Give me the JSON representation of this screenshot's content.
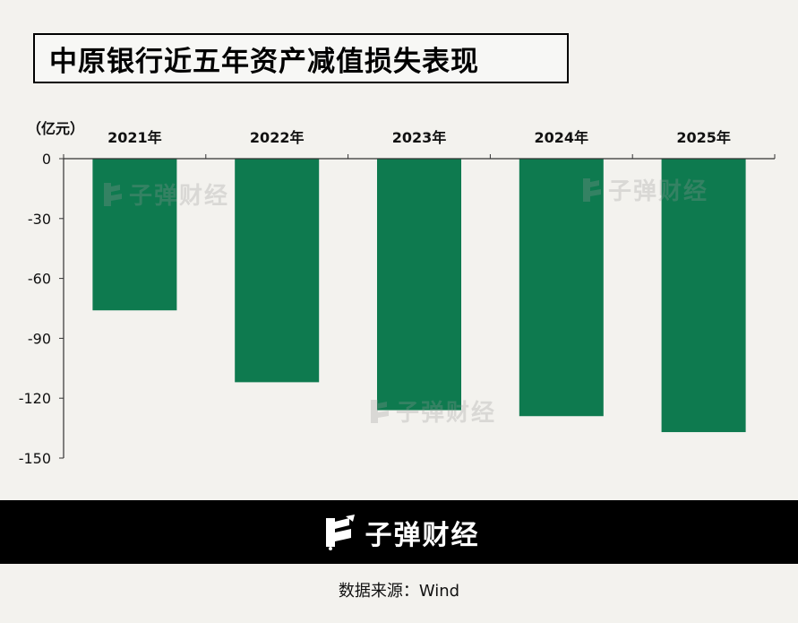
{
  "title": "中原银行近五年资产减值损失表现",
  "chart_data": {
    "type": "bar",
    "categories": [
      "2021年",
      "2022年",
      "2023年",
      "2024年",
      "2025年"
    ],
    "values": [
      -76,
      -112,
      -126,
      -129,
      -137
    ],
    "ylabel": "（亿元）",
    "ylim": [
      -150,
      0
    ],
    "yticks": [
      0,
      -30,
      -60,
      -90,
      -120,
      -150
    ],
    "xaxis_position": "top",
    "bar_color": "#0e7a4f",
    "grid": false
  },
  "brand": {
    "name": "子弹财经",
    "logo_icon": "bullet-finance-logo-icon"
  },
  "source": "数据来源：Wind",
  "colors": {
    "background": "#f3f2ee",
    "bar": "#0e7a4f",
    "footer": "#000000"
  }
}
